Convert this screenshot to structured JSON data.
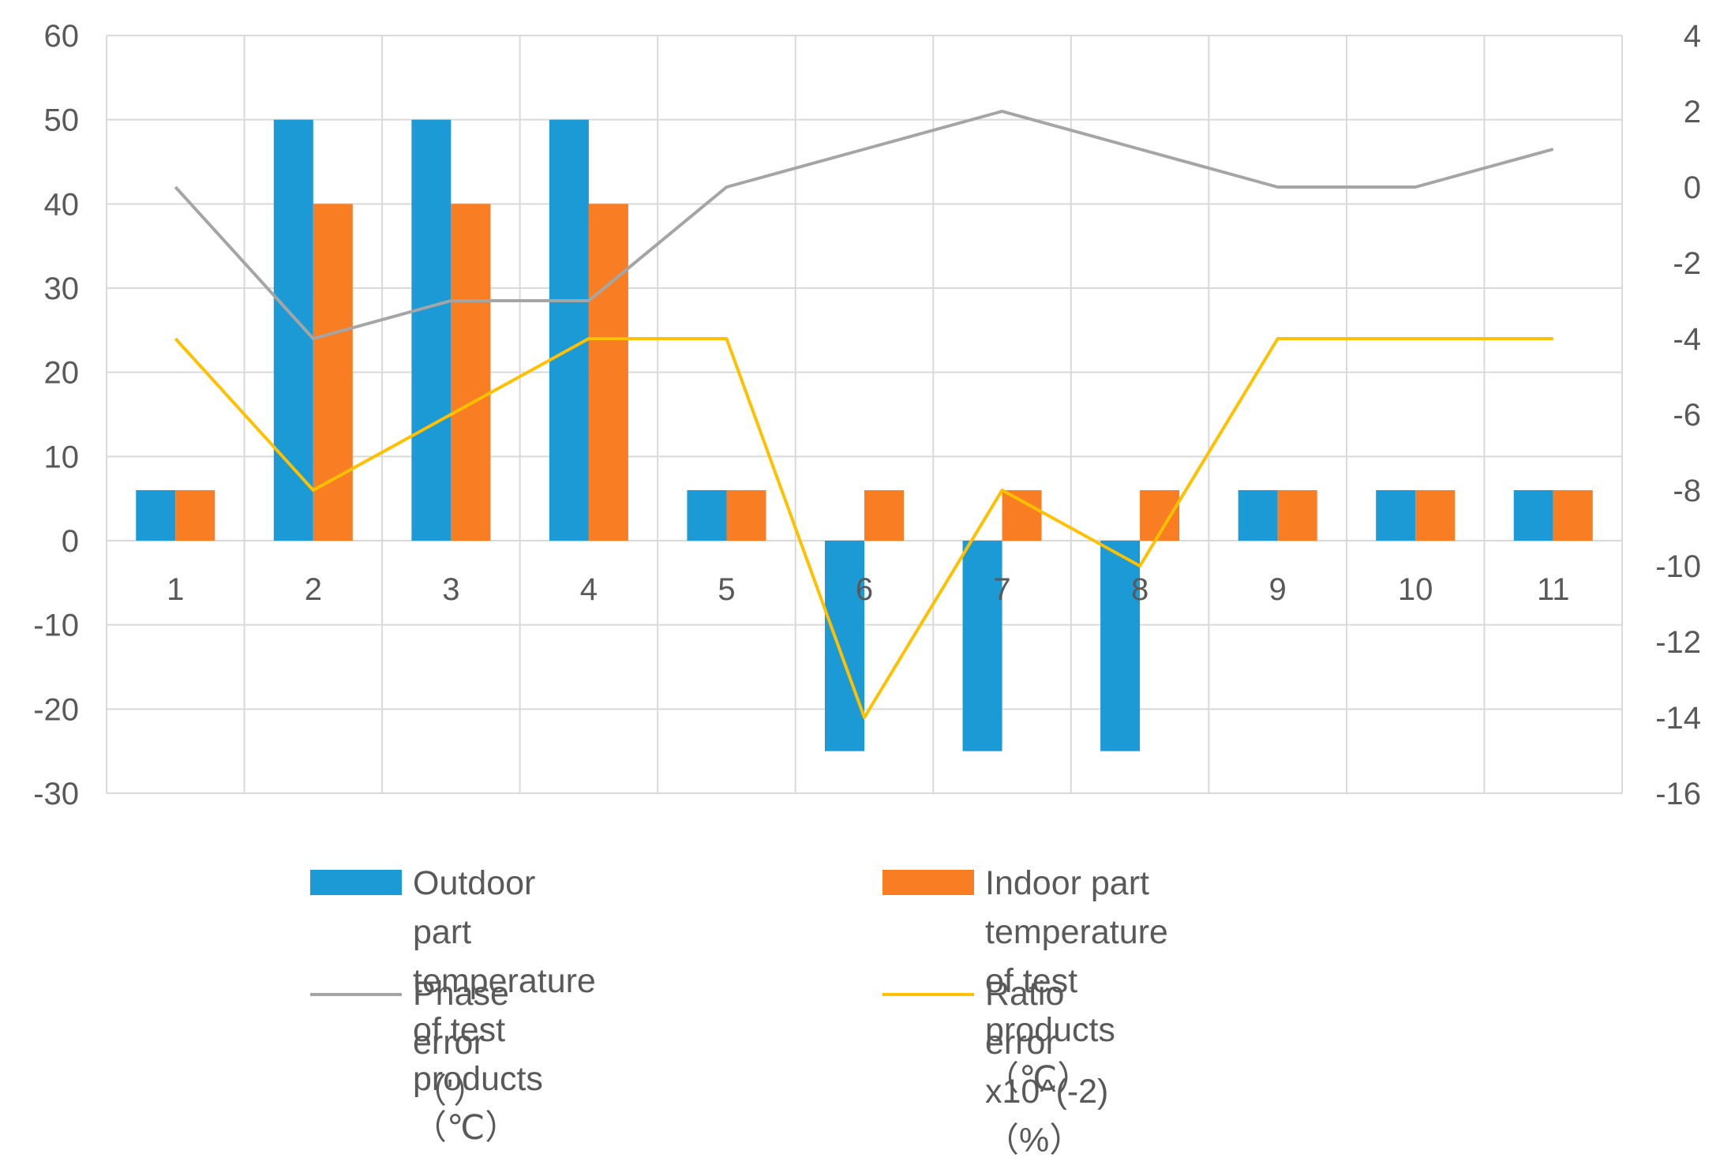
{
  "chart_data": {
    "type": "bar+line",
    "categories": [
      "1",
      "2",
      "3",
      "4",
      "5",
      "6",
      "7",
      "8",
      "9",
      "10",
      "11"
    ],
    "left_axis": {
      "min": -30,
      "max": 60,
      "step": 10,
      "ticks": [
        "-30",
        "-20",
        "-10",
        "0",
        "10",
        "20",
        "30",
        "40",
        "50",
        "60"
      ]
    },
    "right_axis": {
      "min": -16,
      "max": 4,
      "step": 2,
      "ticks": [
        "-16",
        "-14",
        "-12",
        "-10",
        "-8",
        "-6",
        "-4",
        "-2",
        "0",
        "2",
        "4"
      ]
    },
    "series": [
      {
        "name": "Outdoor part temperature\nof test products（℃）",
        "type": "bar",
        "axis": "left",
        "color": "#1B9AD6",
        "values": [
          6,
          50,
          50,
          50,
          6,
          -25,
          -25,
          -25,
          6,
          6,
          6
        ]
      },
      {
        "name": "Indoor part temperature\nof test products（℃）",
        "type": "bar",
        "axis": "left",
        "color": "#F97D22",
        "values": [
          6,
          40,
          40,
          40,
          6,
          6,
          6,
          6,
          6,
          6,
          6
        ]
      },
      {
        "name": "Phase  error（'）",
        "type": "line",
        "axis": "right",
        "color": "#A5A5A5",
        "values": [
          0,
          -4,
          -3,
          -3,
          0,
          1,
          2,
          1,
          0,
          0,
          1
        ]
      },
      {
        "name": "Ratio error x10^(-2)（%）",
        "type": "line",
        "axis": "right",
        "color": "#FFC000",
        "values": [
          -4,
          -8,
          -6,
          -4,
          -4,
          -14,
          -8,
          -10,
          -4,
          -4,
          -4
        ]
      }
    ],
    "grid": true,
    "legend_position": "bottom"
  }
}
